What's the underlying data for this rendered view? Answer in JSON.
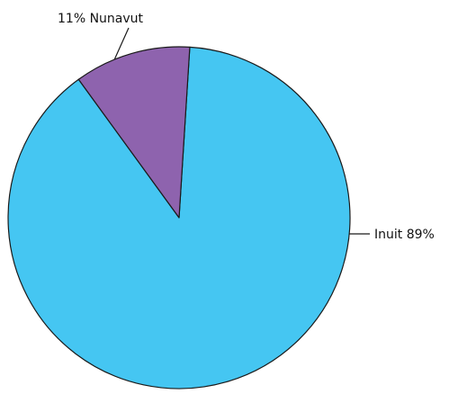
{
  "chart_data": {
    "type": "pie",
    "title": "",
    "slices": [
      {
        "label": "Inuit",
        "value": 89,
        "value_label": "89%",
        "color": "#45C6F2"
      },
      {
        "label": "Nunavut",
        "value": 11,
        "value_label": "11%",
        "color": "#8E63AE"
      }
    ],
    "edge_color": "#1a1a1a"
  },
  "labels": {
    "inuit": "Inuit 89%",
    "nunavut": "11%  Nunavut"
  }
}
